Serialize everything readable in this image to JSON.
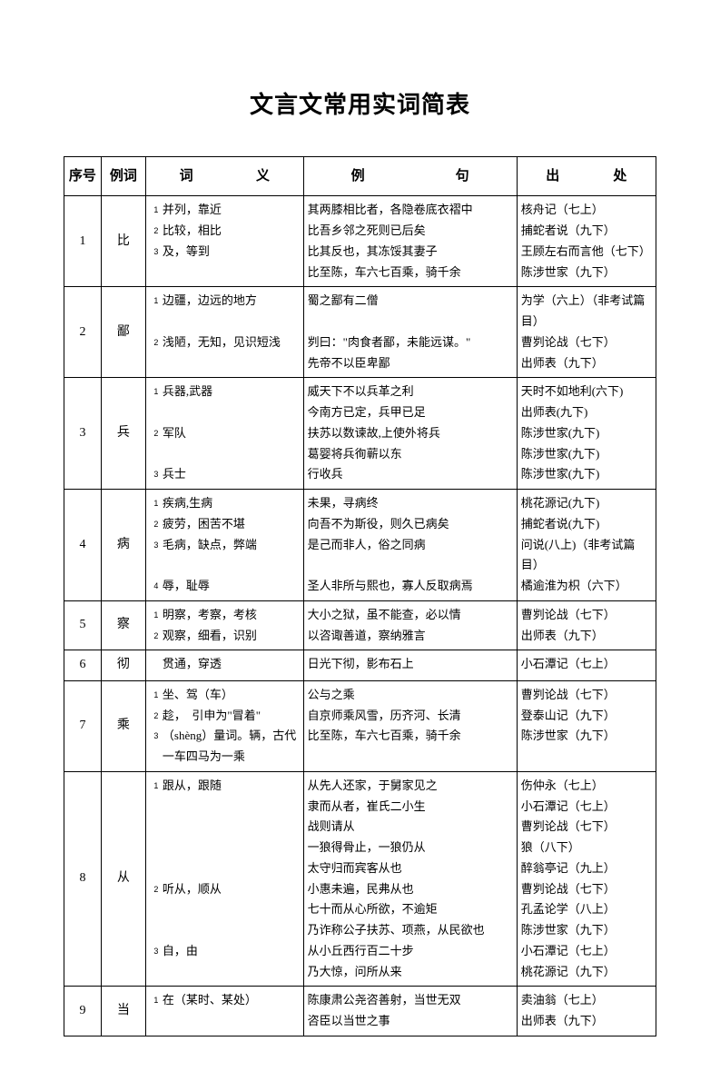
{
  "title": "文言文常用实词简表",
  "headers": {
    "idx": "序号",
    "word": "例词",
    "meaning_a": "词",
    "meaning_b": "义",
    "example_a": "例",
    "example_b": "句",
    "source_a": "出",
    "source_b": "处"
  },
  "rows": [
    {
      "idx": "1",
      "word": "比",
      "meanings": [
        {
          "n": "1",
          "t": "并列，靠近"
        },
        {
          "n": "2",
          "t": "比较，相比"
        },
        {
          "n": "3",
          "t": "及，等到"
        }
      ],
      "examples": [
        "其两膝相比者，各隐卷底衣褶中",
        "比吾乡邻之死则已后矣",
        "比其反也，其冻馁其妻子",
        "比至陈，车六七百乘，骑千余"
      ],
      "sources": [
        "核舟记（七上）",
        "捕蛇者说（九下）",
        "王顾左右而言他（七下）",
        "陈涉世家（九下）"
      ]
    },
    {
      "idx": "2",
      "word": "鄙",
      "meanings": [
        {
          "n": "1",
          "t": "边疆，边远的地方"
        },
        {
          "n": "",
          "t": ""
        },
        {
          "n": "2",
          "t": "浅陋，无知，见识短浅"
        }
      ],
      "examples": [
        "蜀之鄙有二僧",
        "",
        "刿曰：\"肉食者鄙，未能远谋。\"",
        "先帝不以臣卑鄙"
      ],
      "sources": [
        "为学（六上）（非考试篇目）",
        "曹刿论战（七下）",
        "出师表（九下）"
      ]
    },
    {
      "idx": "3",
      "word": "兵",
      "meanings": [
        {
          "n": "1",
          "t": "兵器,武器"
        },
        {
          "n": "",
          "t": ""
        },
        {
          "n": "2",
          "t": "军队"
        },
        {
          "n": "",
          "t": ""
        },
        {
          "n": "3",
          "t": "兵士"
        }
      ],
      "examples": [
        "威天下不以兵革之利",
        "今南方已定，兵甲已足",
        "扶苏以数谏故,上使外将兵",
        "葛婴将兵徇蕲以东",
        "行收兵"
      ],
      "sources": [
        "天时不如地利(六下)",
        "出师表(九下)",
        "陈涉世家(九下)",
        "陈涉世家(九下)",
        "陈涉世家(九下)"
      ]
    },
    {
      "idx": "4",
      "word": "病",
      "meanings": [
        {
          "n": "1",
          "t": "疾病,生病"
        },
        {
          "n": "2",
          "t": "疲劳，困苦不堪"
        },
        {
          "n": "3",
          "t": "毛病，缺点，弊端"
        },
        {
          "n": "",
          "t": ""
        },
        {
          "n": "4",
          "t": "辱，耻辱"
        }
      ],
      "examples": [
        "未果，寻病终",
        "向吾不为斯役，则久已病矣",
        "是己而非人，俗之同病",
        "",
        "圣人非所与熙也，寡人反取病焉"
      ],
      "sources": [
        "桃花源记(九下)",
        "捕蛇者说(九下)",
        "问说(八上)（非考试篇目）",
        "橘逾淮为枳（六下）"
      ]
    },
    {
      "idx": "5",
      "word": "察",
      "meanings": [
        {
          "n": "1",
          "t": "明察，考察，考核"
        },
        {
          "n": "2",
          "t": "观察，细看，识别"
        }
      ],
      "examples": [
        "大小之狱，虽不能查，必以情",
        "以咨诹善道，察纳雅言"
      ],
      "sources": [
        "曹刿论战（七下）",
        "出师表（九下）"
      ]
    },
    {
      "idx": "6",
      "word": "彻",
      "meanings": [
        {
          "n": "",
          "t": "贯通，穿透"
        }
      ],
      "examples": [
        "日光下彻，影布石上"
      ],
      "sources": [
        "小石潭记（七上）"
      ]
    },
    {
      "idx": "7",
      "word": "乘",
      "meanings": [
        {
          "n": "1",
          "t": "坐、驾（车）"
        },
        {
          "n": "2",
          "t": "趁，　引申为\"冒着\""
        },
        {
          "n": "3",
          "t": "（shèng）量词。辆，古代一车四马为一乘"
        }
      ],
      "examples": [
        "公与之乘",
        "自京师乘风雪，历齐河、长清",
        "比至陈，车六七百乘，骑千余"
      ],
      "sources": [
        "曹刿论战（七下）",
        "登泰山记（九下）",
        "陈涉世家（九下）"
      ]
    },
    {
      "idx": "8",
      "word": "从",
      "meanings": [
        {
          "n": "1",
          "t": "跟从，跟随"
        },
        {
          "n": "",
          "t": ""
        },
        {
          "n": "",
          "t": ""
        },
        {
          "n": "",
          "t": ""
        },
        {
          "n": "",
          "t": ""
        },
        {
          "n": "2",
          "t": "听从，顺从"
        },
        {
          "n": "",
          "t": ""
        },
        {
          "n": "",
          "t": ""
        },
        {
          "n": "3",
          "t": "自，由"
        }
      ],
      "examples": [
        "从先人还家，于舅家见之",
        "隶而从者，崔氏二小生",
        "战则请从",
        "一狼得骨止，一狼仍从",
        "太守归而宾客从也",
        "小惠未遍，民弗从也",
        "七十而从心所欲，不逾矩",
        "乃诈称公子扶苏、项燕，从民欲也",
        "从小丘西行百二十步",
        "乃大惊，问所从来"
      ],
      "sources": [
        "伤仲永（七上）",
        "小石潭记（七上）",
        "曹刿论战（七下）",
        "狼（八下）",
        "醉翁亭记（九上）",
        "曹刿论战（七下）",
        "孔孟论学（八上）",
        "陈涉世家（九下）",
        "小石潭记（七上）",
        "桃花源记（九下）"
      ]
    },
    {
      "idx": "9",
      "word": "当",
      "meanings": [
        {
          "n": "1",
          "t": "在（某时、某处）"
        }
      ],
      "examples": [
        "陈康肃公尧咨善射，当世无双",
        "咨臣以当世之事"
      ],
      "sources": [
        "卖油翁（七上）",
        "出师表（九下）"
      ]
    }
  ]
}
